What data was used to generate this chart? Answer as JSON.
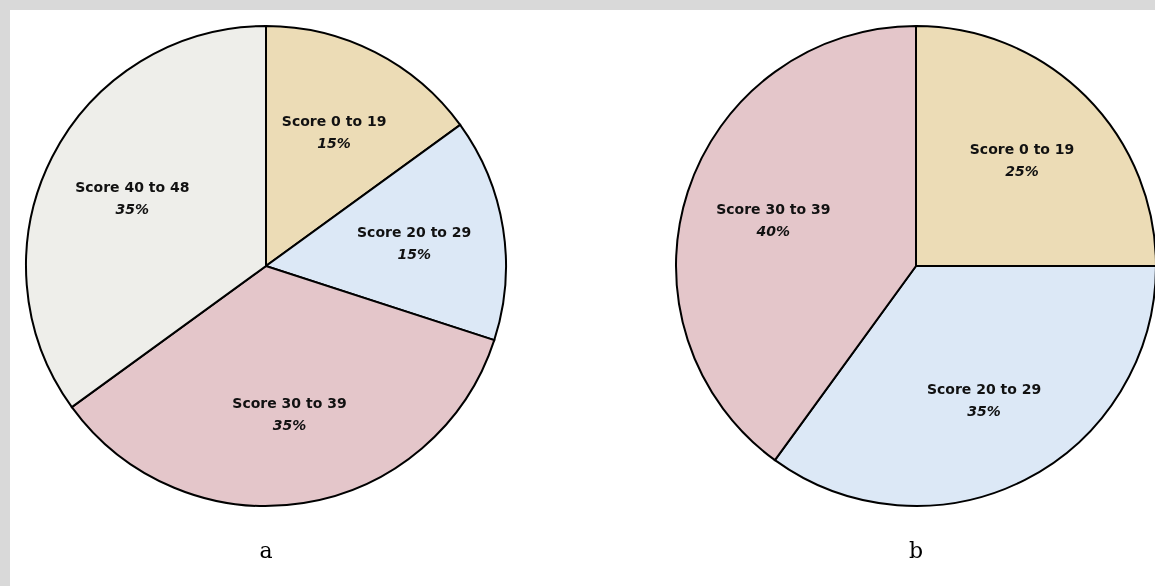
{
  "chart_data": [
    {
      "type": "pie",
      "title": "a",
      "categories": [
        "Score 0 to 19",
        "Score 20 to 29",
        "Score 30 to 39",
        "Score 40 to 48"
      ],
      "values": [
        15,
        15,
        35,
        35
      ],
      "value_labels": [
        "15%",
        "15%",
        "35%",
        "35%"
      ],
      "colors": [
        "#ecdcb6",
        "#dce8f6",
        "#e4c6ca",
        "#eeeeea"
      ]
    },
    {
      "type": "pie",
      "title": "b",
      "categories": [
        "Score 0 to 19",
        "Score 20 to 29",
        "Score 30 to 39"
      ],
      "values": [
        25,
        35,
        40
      ],
      "value_labels": [
        "25%",
        "35%",
        "40%"
      ],
      "colors": [
        "#ecdcb6",
        "#dce8f6",
        "#e4c6ca"
      ]
    }
  ]
}
